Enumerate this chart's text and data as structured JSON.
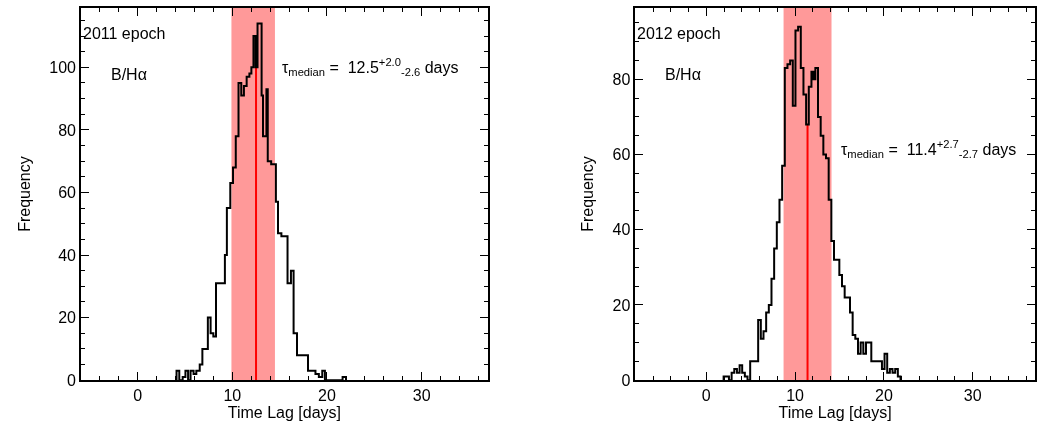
{
  "chart_data": [
    {
      "type": "histogram",
      "xlabel": "Time Lag [days]",
      "ylabel": "Frequency",
      "color": "#000000",
      "bins": [
        4.1,
        4.39,
        4.75,
        5.04,
        5.32,
        5.58,
        5.9,
        6.19,
        6.55,
        6.83,
        7.12,
        7.41,
        7.7,
        7.99,
        8.27,
        9.21,
        9.42,
        9.78,
        10.07,
        10.36,
        10.65,
        10.94,
        11.22,
        11.51,
        11.8,
        12.01,
        12.23,
        12.45,
        12.66,
        12.88,
        13.09,
        13.24,
        13.6,
        13.74,
        14.1,
        14.6,
        14.82,
        15.18,
        15.83,
        16.19,
        16.47,
        16.83,
        17.99,
        18.35,
        18.78,
        19.14,
        19.5,
        19.78,
        21.65,
        22.01
      ],
      "values": [
        3,
        0,
        1,
        3,
        0,
        3,
        2,
        3,
        5,
        10,
        10,
        20,
        15,
        14,
        31,
        40,
        55,
        63,
        68,
        78,
        95,
        91,
        94,
        97,
        98,
        100,
        110,
        100,
        114,
        114,
        91,
        78,
        93,
        70,
        69,
        57,
        47,
        46,
        31,
        35,
        15,
        8,
        3,
        3,
        2,
        1,
        3,
        0,
        1
      ],
      "xlim": [
        -6,
        37
      ],
      "ylim": [
        0,
        119
      ],
      "xticks": [
        0,
        10,
        20,
        30
      ],
      "yticks": [
        0,
        20,
        40,
        60,
        80,
        100
      ],
      "bands": [
        {
          "axis": "x",
          "from": 9.9,
          "to": 14.5,
          "color": "#ff0000"
        }
      ],
      "ref_lines": [
        {
          "axis": "x",
          "value": 12.5,
          "color": "#ff0000"
        }
      ],
      "annotations": [
        "2011 epoch",
        "B/Hα",
        "τ$_{median}$ =  12.5$^{+2.0}$$_{-2.6}$ days"
      ],
      "grid": false
    },
    {
      "type": "histogram",
      "xlabel": "Time Lag [days]",
      "ylabel": "Frequency",
      "color": "#000000",
      "bins": [
        1.95,
        2.55,
        2.85,
        3.15,
        3.45,
        3.75,
        4.04,
        4.34,
        4.64,
        4.94,
        5.84,
        6.14,
        6.44,
        6.74,
        7.04,
        7.34,
        7.64,
        7.94,
        8.24,
        8.54,
        8.84,
        9.14,
        9.44,
        9.74,
        10.04,
        10.34,
        10.64,
        10.94,
        11.24,
        11.54,
        11.84,
        12.06,
        12.28,
        12.58,
        12.88,
        13.18,
        13.48,
        13.78,
        14.08,
        14.38,
        14.68,
        14.98,
        15.28,
        15.58,
        16.18,
        16.48,
        16.78,
        17.08,
        17.38,
        17.68,
        17.98,
        18.58,
        19.18,
        19.78,
        20.07,
        20.37,
        20.67,
        20.97,
        21.27,
        21.57,
        21.87
      ],
      "values": [
        1,
        0,
        2,
        3,
        2,
        4,
        2,
        1,
        0,
        5,
        16,
        11,
        13,
        18,
        20,
        27,
        35,
        42,
        48,
        57,
        83,
        84,
        85,
        73,
        93,
        94,
        83,
        76,
        68,
        78,
        82,
        80,
        83,
        70,
        65,
        60,
        59,
        48,
        37,
        32,
        32,
        28,
        25,
        22,
        18,
        12,
        11,
        7,
        10,
        7,
        10,
        5,
        5,
        3,
        7,
        2,
        3,
        2,
        3,
        1
      ],
      "xlim": [
        -8,
        37
      ],
      "ylim": [
        0,
        99
      ],
      "xticks": [
        0,
        10,
        20,
        30
      ],
      "yticks": [
        0,
        20,
        40,
        60,
        80
      ],
      "bands": [
        {
          "axis": "x",
          "from": 8.7,
          "to": 14.1,
          "color": "#ff0000"
        }
      ],
      "ref_lines": [
        {
          "axis": "x",
          "value": 11.4,
          "color": "#ff0000"
        }
      ],
      "annotations": [
        "2012 epoch",
        "B/Hα",
        "τ$_{median}$ =  11.4$^{+2.7}$$_{-2.7}$ days"
      ],
      "grid": false
    }
  ]
}
